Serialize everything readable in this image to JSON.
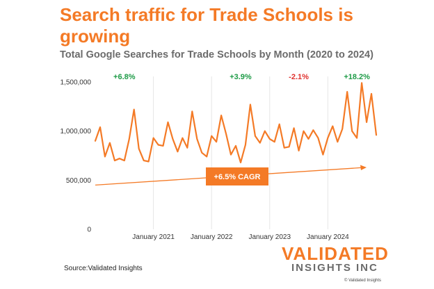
{
  "header": {
    "title": "Search traffic for Trade Schools is growing",
    "subtitle": "Total Google Searches for Trade Schools by Month (2020 to 2024)"
  },
  "footer": {
    "source": "Source:Validated Insights",
    "logo_main": "VALIDATED",
    "logo_sub": "INSIGHTS INC",
    "copyright": "© Validated Insights"
  },
  "colors": {
    "line": "#f47a26",
    "positive": "#1e9b47",
    "negative": "#e0302d",
    "axis_text": "#333333",
    "grid": "#e6e6e6"
  },
  "chart_data": {
    "type": "line",
    "title": "Total Google Searches for Trade Schools by Month (2020 to 2024)",
    "xlabel": "",
    "ylabel": "",
    "ylim": [
      0,
      1500000
    ],
    "yticks": [
      0,
      500000,
      1000000,
      1500000
    ],
    "ytick_labels": [
      "0",
      "500,000",
      "1,000,000",
      "1,500,000"
    ],
    "xticks": [
      12,
      24,
      36,
      48
    ],
    "xtick_labels": [
      "January 2021",
      "January 2022",
      "January 2023",
      "January 2024"
    ],
    "x_gridlines": true,
    "series": [
      {
        "values": [
          900000,
          1040000,
          740000,
          880000,
          700000,
          720000,
          700000,
          920000,
          1220000,
          820000,
          700000,
          690000,
          930000,
          860000,
          850000,
          1090000,
          920000,
          790000,
          930000,
          830000,
          1200000,
          920000,
          780000,
          740000,
          950000,
          890000,
          1160000,
          970000,
          760000,
          850000,
          680000,
          860000,
          1270000,
          950000,
          880000,
          1000000,
          920000,
          890000,
          1070000,
          830000,
          840000,
          1030000,
          800000,
          1000000,
          920000,
          1010000,
          930000,
          760000,
          930000,
          1050000,
          890000,
          1020000,
          1400000,
          1000000,
          930000,
          1490000,
          1090000,
          1380000,
          960000
        ]
      }
    ],
    "annotations": [
      {
        "text": "+6.8%",
        "x": 6,
        "type": "positive"
      },
      {
        "text": "+3.9%",
        "x": 30,
        "type": "positive"
      },
      {
        "text": "-2.1%",
        "x": 42,
        "type": "negative"
      },
      {
        "text": "+18.2%",
        "x": 54,
        "type": "positive"
      }
    ],
    "trend": {
      "label": "+6.5% CAGR",
      "start": [
        0,
        450000
      ],
      "end": [
        58,
        630000
      ]
    }
  }
}
